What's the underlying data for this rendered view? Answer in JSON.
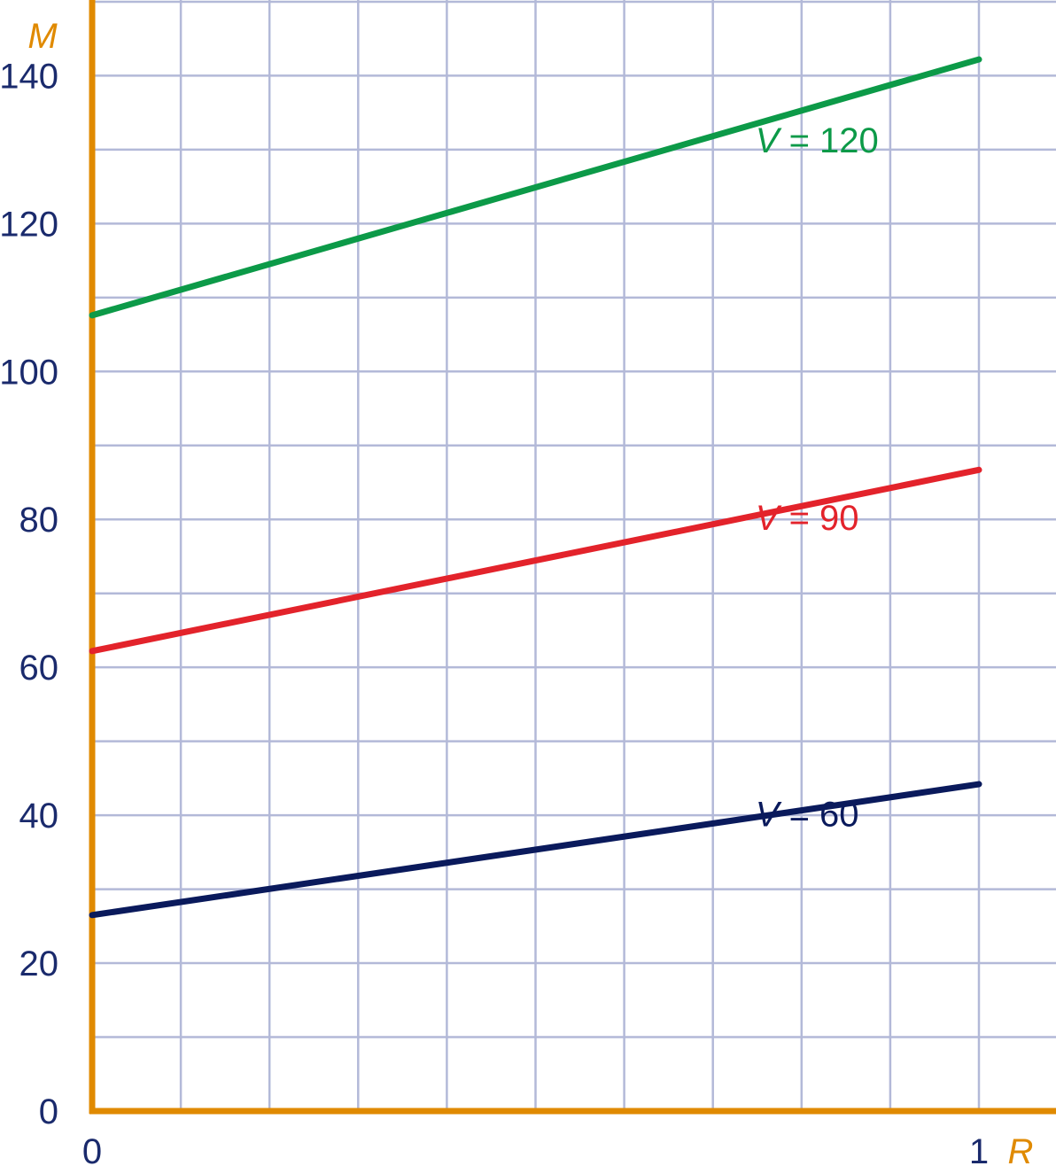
{
  "chart_data": {
    "type": "line",
    "xlabel": "R",
    "ylabel": "M",
    "xlim": [
      0,
      1.1
    ],
    "ylim": [
      0,
      150
    ],
    "x_ticks": [
      "0",
      "1"
    ],
    "y_ticks": [
      "0",
      "20",
      "40",
      "60",
      "80",
      "100",
      "120",
      "140"
    ],
    "grid": true,
    "colors": {
      "axis": "#e08a00",
      "grid": "#b3b9d8",
      "tick_text": "#1a2a6c"
    },
    "series": [
      {
        "name_var": "V",
        "name_rest": " = 60",
        "x": [
          0,
          1
        ],
        "y": [
          26.5,
          44.2
        ],
        "color": "#0a1a5c",
        "label_at": [
          0.77,
          38.5
        ]
      },
      {
        "name_var": "V",
        "name_rest": " = 90",
        "x": [
          0,
          1
        ],
        "y": [
          62.2,
          86.7
        ],
        "color": "#e3232b",
        "label_at": [
          0.77,
          78.6
        ]
      },
      {
        "name_var": "V",
        "name_rest": " = 120",
        "x": [
          0,
          1
        ],
        "y": [
          107.6,
          142.2
        ],
        "color": "#0c9a48",
        "label_at": [
          0.77,
          129.6
        ]
      }
    ]
  }
}
